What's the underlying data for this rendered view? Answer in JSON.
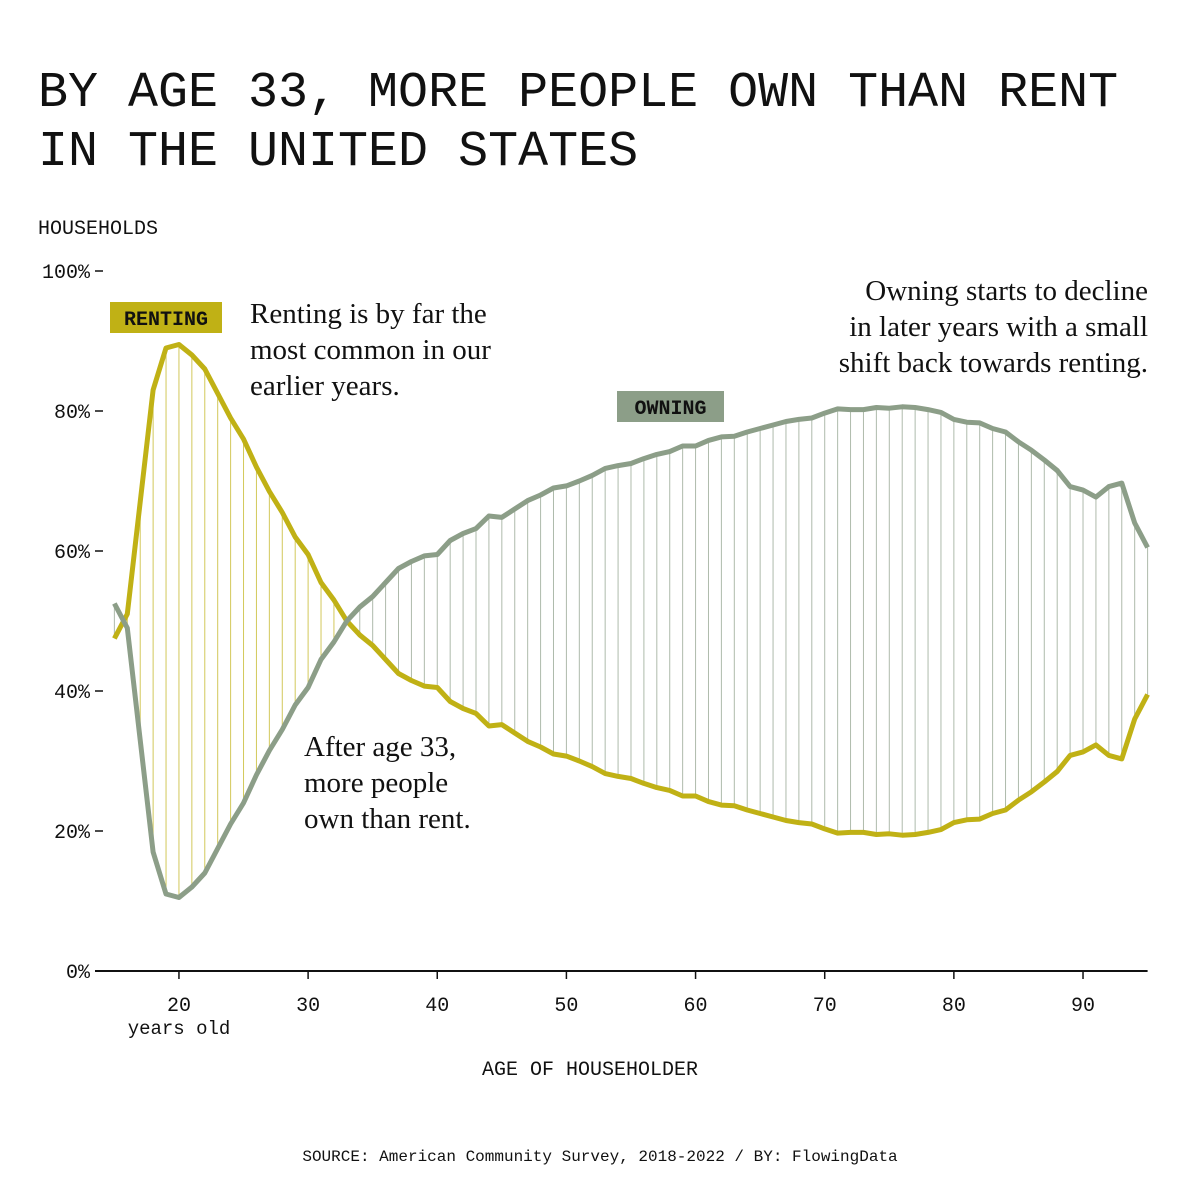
{
  "chart_data": {
    "type": "line",
    "title": [
      "BY AGE 33, MORE PEOPLE OWN THAN RENT",
      "IN THE UNITED STATES"
    ],
    "y_label": "HOUSEHOLDS",
    "x_label": "AGE OF HOUSEHOLDER",
    "x_sublabel": "years old",
    "source": "SOURCE: American Community Survey, 2018-2022 / BY: FlowingData",
    "annotations": [
      [
        "Renting is by far the",
        "most common in our",
        "earlier years."
      ],
      [
        "Owning starts to decline",
        "in later years with a small",
        "shift back towards renting."
      ],
      [
        "After age 33,",
        "more people",
        "own than rent."
      ]
    ],
    "x": [
      15,
      16,
      17,
      18,
      19,
      20,
      21,
      22,
      23,
      24,
      25,
      26,
      27,
      28,
      29,
      30,
      31,
      32,
      33,
      34,
      35,
      36,
      37,
      38,
      39,
      40,
      41,
      42,
      43,
      44,
      45,
      46,
      47,
      48,
      49,
      50,
      51,
      52,
      53,
      54,
      55,
      56,
      57,
      58,
      59,
      60,
      61,
      62,
      63,
      64,
      65,
      66,
      67,
      68,
      69,
      70,
      71,
      72,
      73,
      74,
      75,
      76,
      77,
      78,
      79,
      80,
      81,
      82,
      83,
      84,
      85,
      86,
      87,
      88,
      89,
      90,
      91,
      92,
      93,
      94,
      95
    ],
    "series": [
      {
        "name": "RENTING",
        "color": "#c0b115",
        "values": [
          47.5,
          51,
          67,
          83,
          89,
          89.5,
          88,
          86,
          82.5,
          79,
          76,
          72,
          68.5,
          65.5,
          62,
          59.5,
          55.5,
          53,
          50,
          48,
          46.5,
          44.5,
          42.5,
          41.5,
          40.7,
          40.5,
          38.5,
          37.5,
          36.8,
          35,
          35.2,
          34,
          32.8,
          32,
          31,
          30.7,
          30,
          29.2,
          28.2,
          27.8,
          27.5,
          26.8,
          26.2,
          25.8,
          25,
          25,
          24.2,
          23.7,
          23.6,
          23,
          22.5,
          22,
          21.5,
          21.2,
          21,
          20.3,
          19.7,
          19.8,
          19.8,
          19.5,
          19.6,
          19.4,
          19.5,
          19.8,
          20.2,
          21.2,
          21.6,
          21.7,
          22.5,
          23,
          24.4,
          25.6,
          27,
          28.5,
          30.8,
          31.3,
          32.3,
          30.8,
          30.3,
          36,
          39.5
        ]
      },
      {
        "name": "OWNING",
        "color": "#8c9e88",
        "values": [
          52.5,
          49,
          33,
          17,
          11,
          10.5,
          12,
          14,
          17.5,
          21,
          24,
          28,
          31.5,
          34.5,
          38,
          40.5,
          44.5,
          47,
          50,
          52,
          53.5,
          55.5,
          57.5,
          58.5,
          59.3,
          59.5,
          61.5,
          62.5,
          63.2,
          65,
          64.8,
          66,
          67.2,
          68,
          69,
          69.3,
          70,
          70.8,
          71.8,
          72.2,
          72.5,
          73.2,
          73.8,
          74.2,
          75,
          75,
          75.8,
          76.3,
          76.4,
          77,
          77.5,
          78,
          78.5,
          78.8,
          79,
          79.7,
          80.3,
          80.2,
          80.2,
          80.5,
          80.4,
          80.6,
          80.5,
          80.2,
          79.8,
          78.8,
          78.4,
          78.3,
          77.5,
          77,
          75.6,
          74.4,
          73,
          71.5,
          69.2,
          68.7,
          67.7,
          69.2,
          69.7,
          64,
          60.5
        ]
      }
    ],
    "xlim": [
      13.5,
      95
    ],
    "xticks": [
      20,
      30,
      40,
      50,
      60,
      70,
      80,
      90
    ],
    "ylim": [
      0,
      100
    ],
    "yticks": [
      {
        "value": 0,
        "label": "0%"
      },
      {
        "value": 20,
        "label": "20%"
      },
      {
        "value": 40,
        "label": "40%"
      },
      {
        "value": 60,
        "label": "60%"
      },
      {
        "value": 80,
        "label": "80%"
      },
      {
        "value": 100,
        "label": "100%"
      }
    ]
  }
}
